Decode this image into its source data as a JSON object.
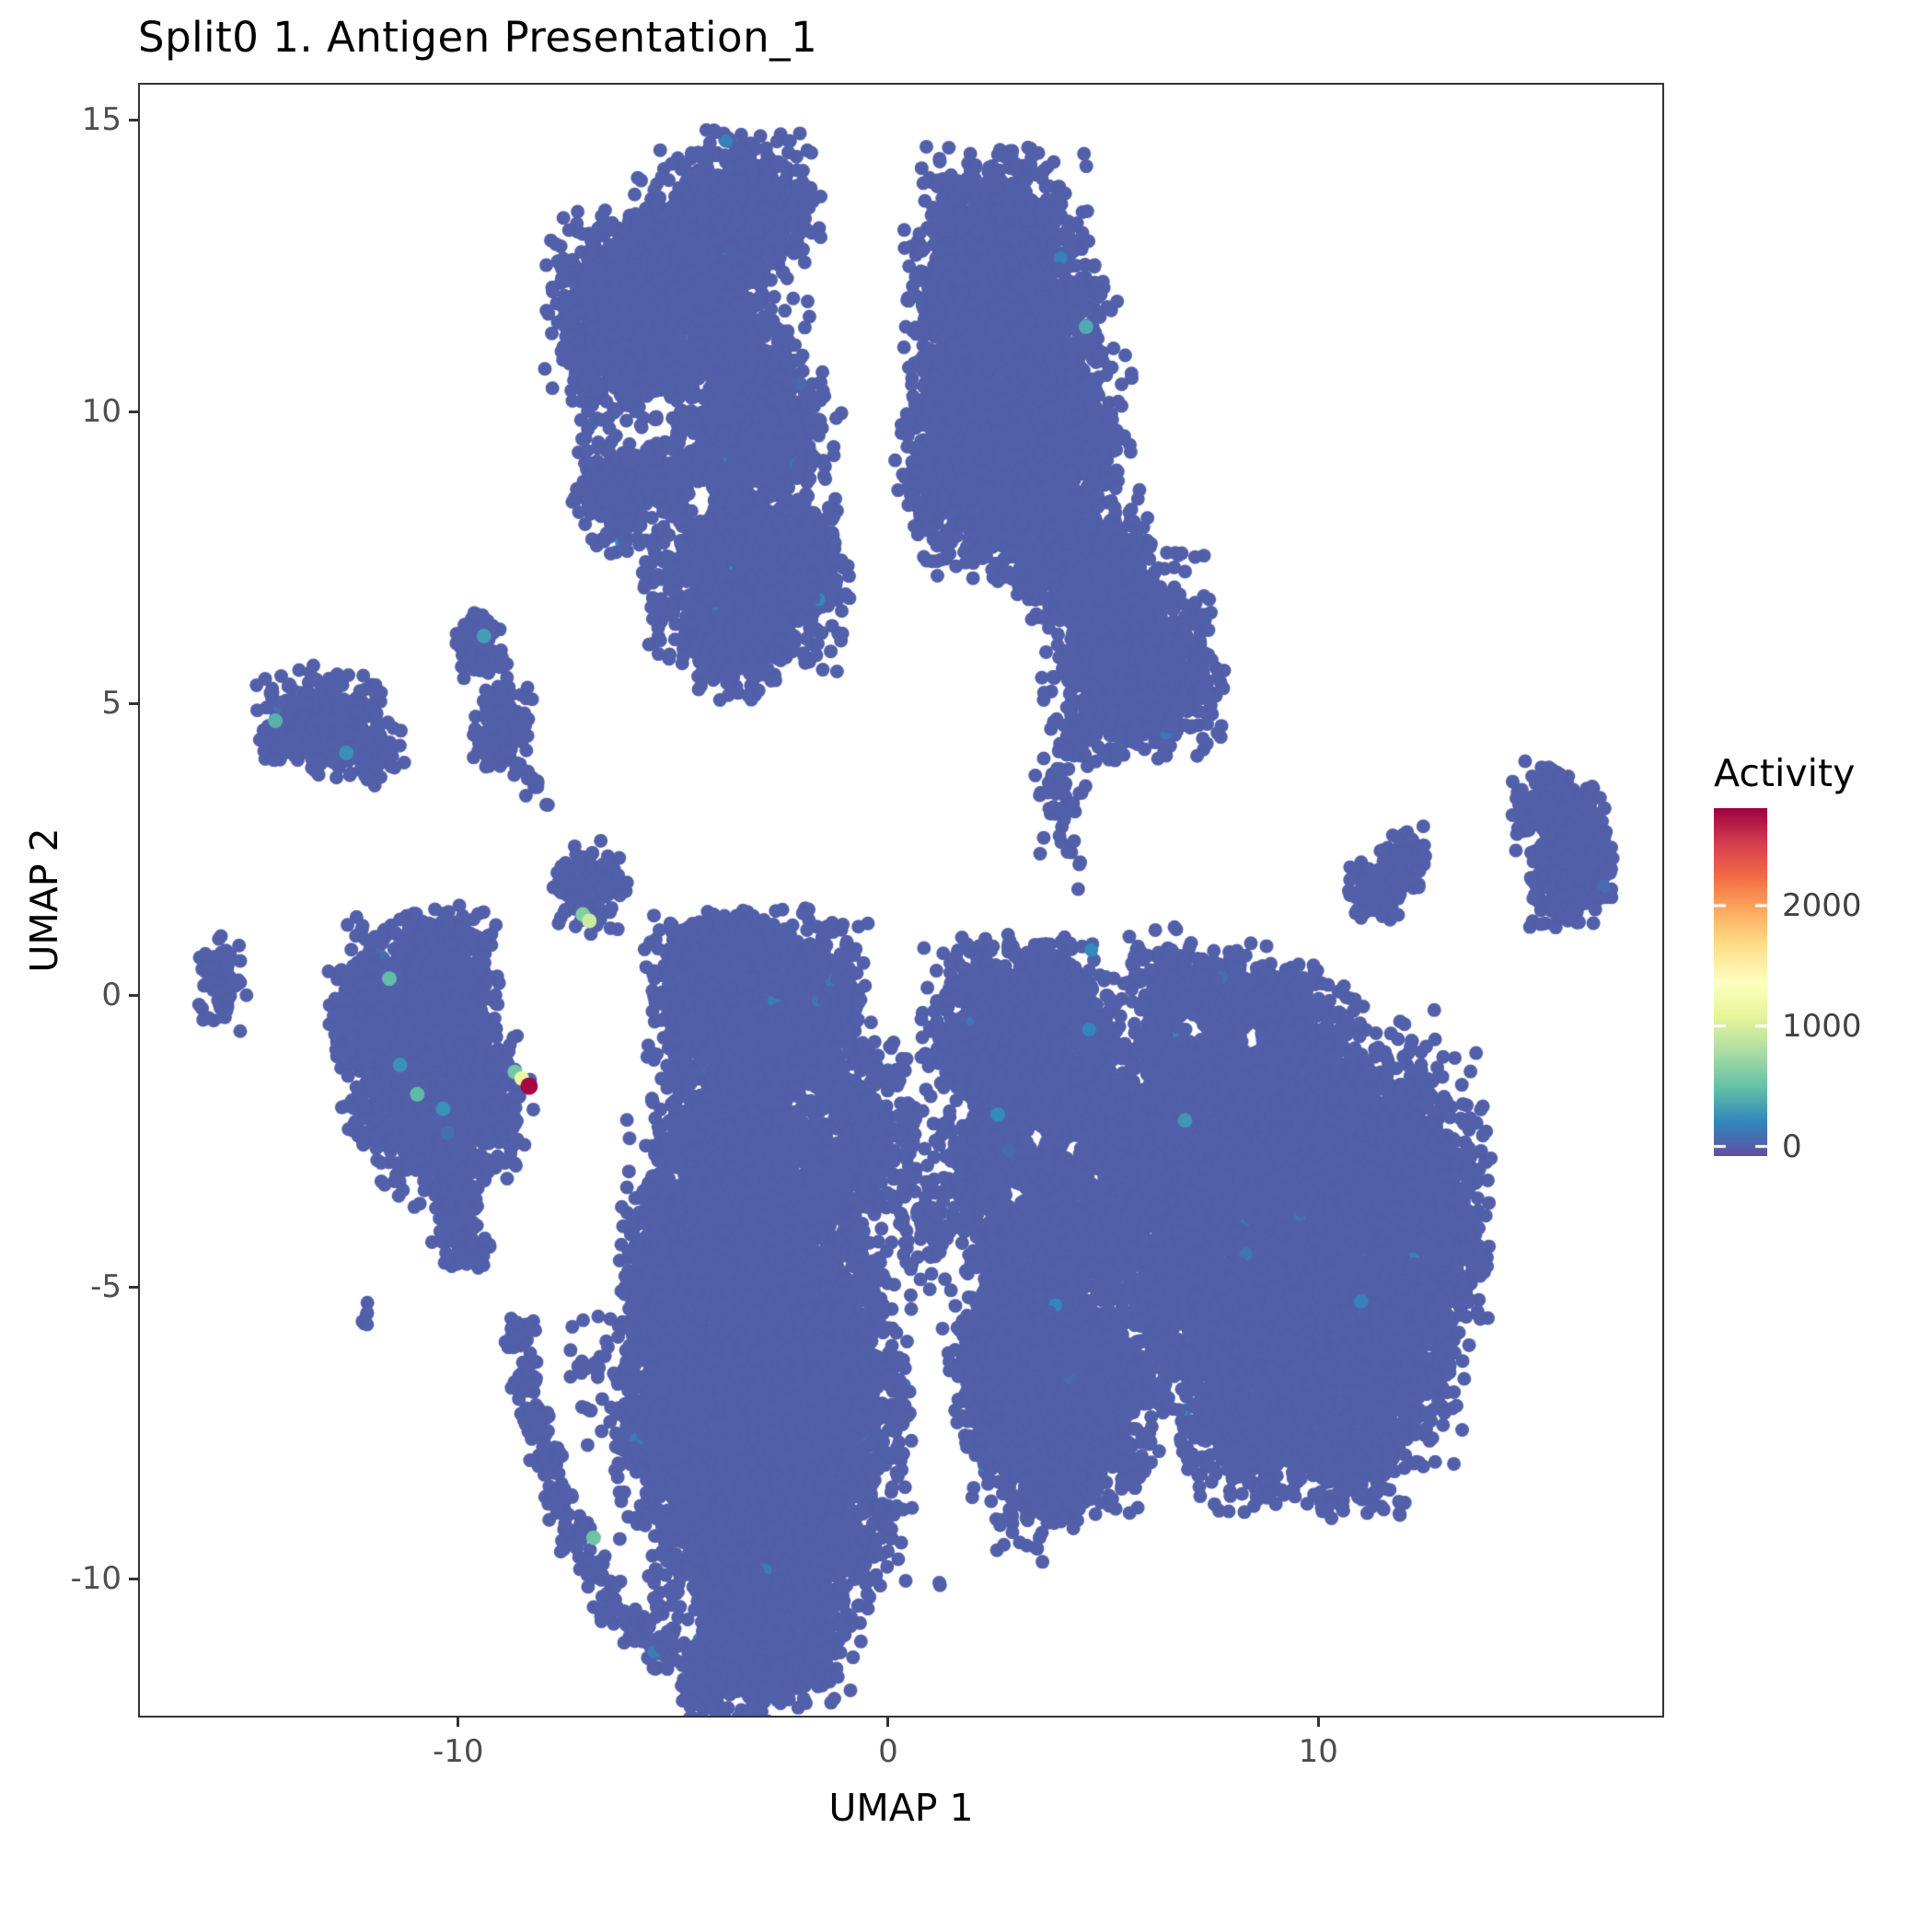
{
  "title": "Split0 1. Antigen Presentation_1",
  "axes": {
    "x_label": "UMAP 1",
    "y_label": "UMAP 2",
    "x_ticks": [
      -10,
      0,
      10
    ],
    "y_ticks": [
      15,
      10,
      5,
      0,
      -5,
      -10
    ]
  },
  "legend": {
    "title": "Activity",
    "tick_values": [
      2000,
      1000,
      0
    ]
  },
  "colors": {
    "baseline_point": "#5E4FA2",
    "panel_border": "#333333",
    "tick_label": "#4D4D4D",
    "background": "#FFFFFF"
  },
  "chart_data": {
    "type": "scatter",
    "title": "Split0 1. Antigen Presentation_1",
    "xlabel": "UMAP 1",
    "ylabel": "UMAP 2",
    "xlim": [
      -17.4,
      18.0
    ],
    "ylim": [
      -12.35,
      15.6
    ],
    "x_ticks": [
      -10,
      0,
      10
    ],
    "y_ticks": [
      15,
      10,
      5,
      0,
      -5,
      -10
    ],
    "grid": false,
    "legend_position": "right",
    "point_radius_px": 7.5,
    "baseline_activity": 0,
    "color_scale": {
      "name": "spectral-reversed",
      "domain": [
        -80,
        2810
      ],
      "stops": [
        "#5E4FA2",
        "#3288BD",
        "#66C2A5",
        "#ABDDA4",
        "#E6F598",
        "#FFFFBF",
        "#FEE08B",
        "#FDAE61",
        "#F46D43",
        "#D53E4F",
        "#9E0142"
      ]
    },
    "clusters": [
      {
        "name": "top-left-main",
        "blobs": [
          [
            -3.5,
            13.4,
            0.85,
            0.62,
            700
          ],
          [
            -4.5,
            12.6,
            0.75,
            0.65,
            600
          ],
          [
            -5.7,
            11.9,
            1.0,
            0.72,
            1000
          ],
          [
            -6.4,
            11.0,
            0.55,
            0.55,
            300
          ],
          [
            -4.6,
            11.2,
            0.7,
            0.65,
            450
          ],
          [
            -3.2,
            10.6,
            0.6,
            0.65,
            350
          ],
          [
            -2.9,
            9.4,
            0.72,
            0.58,
            450
          ],
          [
            -4.7,
            9.0,
            0.48,
            0.42,
            170
          ],
          [
            -3.9,
            8.45,
            0.42,
            0.38,
            140
          ],
          [
            -6.3,
            8.65,
            0.5,
            0.48,
            260
          ],
          [
            -3.3,
            7.05,
            1.05,
            0.7,
            1200
          ],
          [
            -3.6,
            6.0,
            0.5,
            0.42,
            240
          ],
          [
            -2.2,
            7.6,
            0.5,
            0.45,
            200
          ],
          [
            -1.15,
            9.9,
            0.04,
            0.04,
            2
          ]
        ],
        "holes": [
          [
            -4.35,
            8.5,
            0.3
          ]
        ]
      },
      {
        "name": "top-right",
        "blobs": [
          [
            2.55,
            12.9,
            0.95,
            0.72,
            800
          ],
          [
            1.8,
            11.8,
            0.6,
            0.6,
            300
          ],
          [
            3.5,
            11.5,
            0.8,
            0.7,
            500
          ],
          [
            2.6,
            10.3,
            1.0,
            0.85,
            900
          ],
          [
            4.1,
            9.7,
            0.7,
            0.7,
            450
          ],
          [
            1.3,
            9.0,
            0.5,
            0.75,
            280
          ],
          [
            3.1,
            8.4,
            0.9,
            0.68,
            600
          ],
          [
            4.6,
            7.4,
            0.7,
            0.6,
            350
          ],
          [
            5.4,
            6.3,
            0.85,
            0.72,
            550
          ],
          [
            6.3,
            5.4,
            0.68,
            0.62,
            400
          ],
          [
            5.0,
            5.0,
            0.5,
            0.5,
            200
          ],
          [
            4.0,
            3.9,
            0.3,
            0.7,
            50
          ],
          [
            4.3,
            2.6,
            0.22,
            0.45,
            14
          ]
        ],
        "holes": []
      },
      {
        "name": "left-small-upper",
        "blobs": [
          [
            -13.2,
            4.75,
            0.68,
            0.4,
            260
          ],
          [
            -12.35,
            4.3,
            0.5,
            0.33,
            140
          ],
          [
            -13.95,
            4.45,
            0.3,
            0.28,
            60
          ]
        ],
        "holes": []
      },
      {
        "name": "left-small-mid",
        "blobs": [
          [
            -9.45,
            6.0,
            0.28,
            0.3,
            80
          ],
          [
            -9.0,
            4.55,
            0.33,
            0.38,
            130
          ],
          [
            -8.35,
            3.6,
            0.14,
            0.14,
            10
          ],
          [
            -7.95,
            3.3,
            0.05,
            0.05,
            2
          ]
        ],
        "holes": []
      },
      {
        "name": "small-center-left",
        "blobs": [
          [
            -6.95,
            1.85,
            0.4,
            0.36,
            160
          ]
        ],
        "holes": []
      },
      {
        "name": "far-left-tiny",
        "blobs": [
          [
            -15.55,
            0.2,
            0.28,
            0.36,
            70
          ]
        ],
        "holes": []
      },
      {
        "name": "left-middle",
        "blobs": [
          [
            -11.0,
            -0.6,
            0.85,
            0.88,
            900
          ],
          [
            -11.95,
            -0.4,
            0.5,
            0.55,
            240
          ],
          [
            -10.3,
            0.6,
            0.55,
            0.42,
            220
          ],
          [
            -10.2,
            -1.6,
            0.7,
            0.68,
            450
          ],
          [
            -9.35,
            -1.8,
            0.48,
            0.52,
            220
          ],
          [
            -10.6,
            -2.6,
            0.58,
            0.5,
            220
          ],
          [
            -9.95,
            -3.5,
            0.33,
            0.65,
            140
          ],
          [
            -9.7,
            -4.3,
            0.2,
            0.28,
            28
          ],
          [
            -11.6,
            -1.8,
            0.45,
            0.5,
            150
          ]
        ],
        "holes": []
      },
      {
        "name": "tiny-pair",
        "blobs": [
          [
            -12.05,
            -5.6,
            0.1,
            0.2,
            6
          ]
        ],
        "holes": []
      },
      {
        "name": "bottom-center",
        "blobs": [
          [
            -3.0,
            -0.1,
            1.1,
            0.72,
            1100
          ],
          [
            -4.4,
            0.3,
            0.55,
            0.5,
            280
          ],
          [
            -1.7,
            -0.4,
            0.6,
            0.58,
            300
          ],
          [
            -0.55,
            -2.4,
            0.52,
            0.78,
            280
          ],
          [
            -3.4,
            -2.0,
            1.0,
            0.8,
            900
          ],
          [
            -3.2,
            -4.2,
            1.35,
            1.05,
            2200
          ],
          [
            -4.95,
            -4.9,
            0.6,
            0.6,
            300
          ],
          [
            -2.9,
            -6.7,
            1.5,
            1.15,
            2800
          ],
          [
            -4.9,
            -7.5,
            0.7,
            0.8,
            450
          ],
          [
            -1.3,
            -7.8,
            0.7,
            0.8,
            400
          ],
          [
            -2.9,
            -9.5,
            1.2,
            0.9,
            1300
          ],
          [
            -3.1,
            -11.1,
            0.85,
            0.72,
            600
          ],
          [
            -1.6,
            -11.0,
            0.4,
            0.4,
            90
          ],
          [
            -4.3,
            -11.9,
            0.3,
            0.33,
            50
          ],
          [
            -8.55,
            -5.85,
            0.18,
            0.18,
            32
          ],
          [
            -8.4,
            -6.55,
            0.18,
            0.18,
            32
          ],
          [
            -8.2,
            -7.25,
            0.18,
            0.18,
            32
          ],
          [
            -7.95,
            -7.95,
            0.18,
            0.18,
            32
          ],
          [
            -7.65,
            -8.6,
            0.18,
            0.18,
            32
          ],
          [
            -7.3,
            -9.25,
            0.18,
            0.18,
            32
          ],
          [
            -6.9,
            -9.85,
            0.18,
            0.18,
            32
          ],
          [
            -6.45,
            -10.4,
            0.18,
            0.18,
            32
          ],
          [
            -5.9,
            -10.85,
            0.18,
            0.18,
            32
          ],
          [
            -5.3,
            -11.2,
            0.2,
            0.2,
            32
          ],
          [
            -6.8,
            -6.6,
            0.3,
            0.65,
            30
          ],
          [
            -0.1,
            -9.3,
            0.38,
            0.5,
            28
          ],
          [
            1.2,
            -10.1,
            0.04,
            0.04,
            2
          ],
          [
            0.9,
            -4.0,
            0.42,
            0.55,
            70
          ],
          [
            0.5,
            -2.8,
            0.3,
            0.55,
            36
          ]
        ],
        "holes": []
      },
      {
        "name": "bottom-right-west-lobes",
        "blobs": [
          [
            2.6,
            -0.6,
            0.8,
            0.72,
            700
          ],
          [
            3.9,
            -0.5,
            0.75,
            0.68,
            600
          ],
          [
            3.2,
            -1.8,
            0.9,
            0.7,
            700
          ],
          [
            4.6,
            -1.9,
            0.6,
            0.58,
            300
          ],
          [
            2.2,
            -2.7,
            0.5,
            0.6,
            250
          ],
          [
            3.8,
            -3.3,
            0.8,
            0.7,
            500
          ],
          [
            4.9,
            -4.0,
            0.55,
            0.55,
            220
          ],
          [
            3.0,
            -4.4,
            0.6,
            0.6,
            300
          ],
          [
            3.9,
            -5.8,
            0.95,
            0.9,
            900
          ],
          [
            4.6,
            -7.2,
            0.8,
            0.78,
            600
          ],
          [
            3.3,
            -7.6,
            0.7,
            0.68,
            450
          ],
          [
            3.9,
            -8.5,
            0.4,
            0.33,
            100
          ],
          [
            2.4,
            -6.2,
            0.5,
            0.6,
            250
          ],
          [
            3.1,
            -9.4,
            0.28,
            0.22,
            10
          ]
        ],
        "holes": [
          [
            3.45,
            -2.45,
            0.22
          ],
          [
            4.25,
            -2.62,
            0.2
          ],
          [
            2.95,
            -3.42,
            0.2
          ],
          [
            1.78,
            -1.95,
            0.22
          ],
          [
            2.05,
            -4.95,
            0.2
          ]
        ]
      },
      {
        "name": "bottom-right-main",
        "blobs": [
          [
            7.2,
            -1.7,
            0.9,
            0.9,
            800
          ],
          [
            8.8,
            -1.5,
            0.9,
            0.9,
            800
          ],
          [
            7.0,
            -3.4,
            0.9,
            1.0,
            800
          ],
          [
            8.6,
            -3.6,
            1.0,
            1.0,
            1000
          ],
          [
            10.3,
            -2.6,
            1.1,
            1.05,
            1100
          ],
          [
            11.9,
            -2.9,
            0.9,
            0.88,
            700
          ],
          [
            12.3,
            -4.3,
            0.8,
            0.88,
            600
          ],
          [
            10.6,
            -4.9,
            1.1,
            1.05,
            1100
          ],
          [
            8.9,
            -5.6,
            1.0,
            1.0,
            900
          ],
          [
            7.4,
            -5.6,
            0.8,
            0.88,
            600
          ],
          [
            9.9,
            -6.9,
            1.0,
            0.85,
            800
          ],
          [
            11.6,
            -6.4,
            0.8,
            0.78,
            500
          ],
          [
            8.3,
            -7.3,
            0.7,
            0.68,
            400
          ],
          [
            10.9,
            -7.9,
            0.5,
            0.48,
            200
          ],
          [
            6.5,
            0.3,
            0.45,
            0.42,
            180
          ],
          [
            7.9,
            0.1,
            0.4,
            0.38,
            140
          ],
          [
            9.2,
            -0.3,
            0.5,
            0.4,
            180
          ],
          [
            5.8,
            -2.5,
            0.38,
            0.75,
            70
          ],
          [
            5.6,
            -4.6,
            0.33,
            0.65,
            50
          ],
          [
            5.9,
            -6.5,
            0.38,
            0.55,
            60
          ]
        ],
        "holes": [
          [
            8.45,
            -0.75,
            0.22
          ],
          [
            7.15,
            -0.6,
            0.2
          ]
        ]
      },
      {
        "name": "right-small",
        "blobs": [
          [
            11.35,
            1.75,
            0.3,
            0.27,
            90
          ],
          [
            11.95,
            2.3,
            0.3,
            0.28,
            90
          ],
          [
            10.95,
            1.45,
            0.08,
            0.08,
            4
          ]
        ],
        "holes": []
      },
      {
        "name": "far-right",
        "blobs": [
          [
            15.5,
            3.1,
            0.45,
            0.4,
            220
          ],
          [
            15.95,
            2.3,
            0.45,
            0.5,
            280
          ],
          [
            15.45,
            1.7,
            0.3,
            0.28,
            90
          ]
        ],
        "holes": [
          [
            15.05,
            2.7,
            0.18
          ]
        ]
      }
    ],
    "highlight_points": [
      {
        "x": 4.6,
        "y": 11.45,
        "value": 380
      },
      {
        "x": -14.25,
        "y": 4.7,
        "value": 420
      },
      {
        "x": -12.6,
        "y": 4.15,
        "value": 250
      },
      {
        "x": -9.4,
        "y": 6.15,
        "value": 320
      },
      {
        "x": -11.6,
        "y": 0.28,
        "value": 480
      },
      {
        "x": -11.35,
        "y": -1.2,
        "value": 260
      },
      {
        "x": -10.95,
        "y": -1.7,
        "value": 460
      },
      {
        "x": -10.35,
        "y": -1.95,
        "value": 260
      },
      {
        "x": -7.1,
        "y": 1.38,
        "value": 620
      },
      {
        "x": -6.95,
        "y": 1.27,
        "value": 950
      },
      {
        "x": -8.68,
        "y": -1.32,
        "value": 560
      },
      {
        "x": -8.52,
        "y": -1.43,
        "value": 1150
      },
      {
        "x": -8.35,
        "y": -1.56,
        "value": 2780
      },
      {
        "x": -6.85,
        "y": -9.3,
        "value": 520
      },
      {
        "x": 6.9,
        "y": -2.15,
        "value": 280
      },
      {
        "x": 2.55,
        "y": -2.05,
        "value": 220
      },
      {
        "x": 11.0,
        "y": -5.25,
        "value": 180
      }
    ]
  }
}
